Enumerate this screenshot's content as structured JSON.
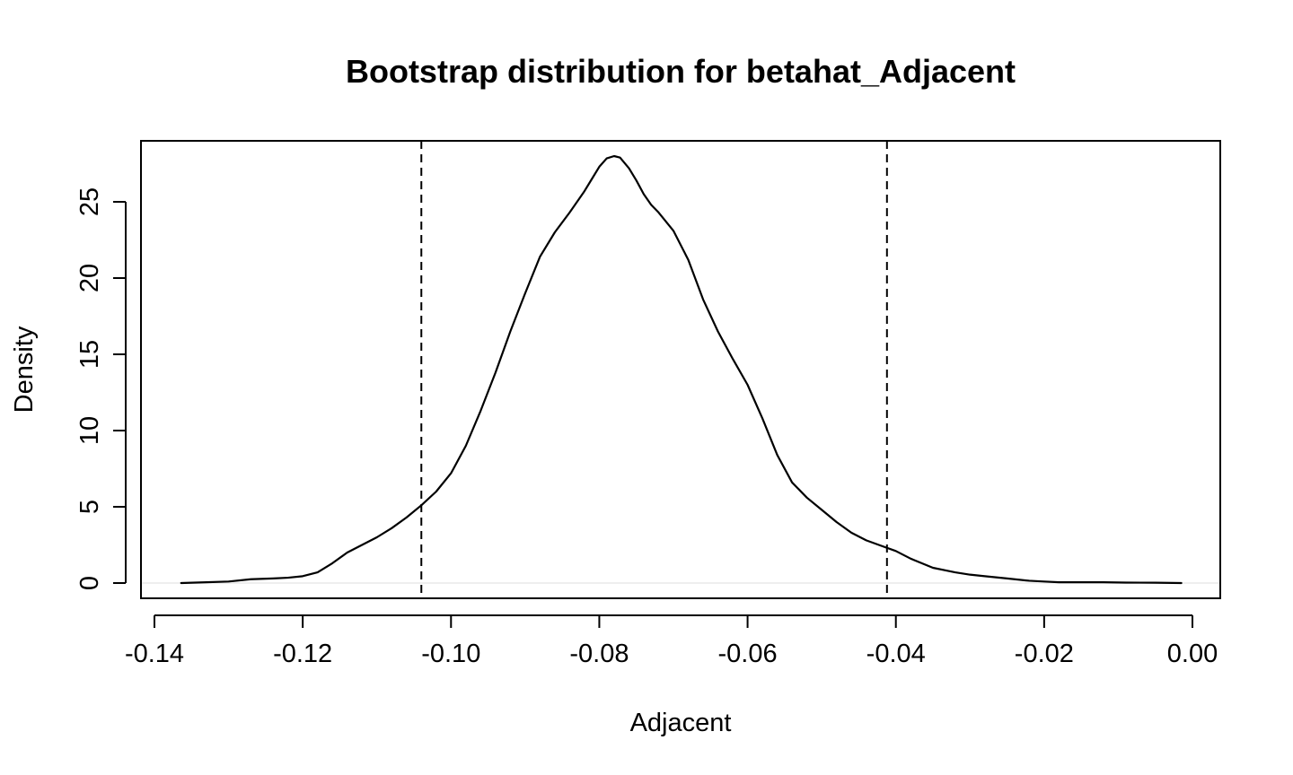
{
  "chart_data": {
    "type": "line",
    "title": "Bootstrap distribution for betahat_Adjacent",
    "xlabel": "Adjacent",
    "ylabel": "Density",
    "xlim": [
      -0.14,
      0.0
    ],
    "ylim": [
      0,
      28
    ],
    "x_ticks": [
      "-0.14",
      "-0.12",
      "-0.10",
      "-0.08",
      "-0.06",
      "-0.04",
      "-0.02",
      "0.00"
    ],
    "x_tick_values": [
      -0.14,
      -0.12,
      -0.1,
      -0.08,
      -0.06,
      -0.04,
      -0.02,
      0.0
    ],
    "y_ticks": [
      "0",
      "5",
      "10",
      "15",
      "20",
      "25"
    ],
    "y_tick_values": [
      0,
      5,
      10,
      15,
      20,
      25
    ],
    "grid": false,
    "series": [
      {
        "style": "solid",
        "color": "#000000",
        "x": [
          -0.1364,
          -0.133,
          -0.13,
          -0.127,
          -0.124,
          -0.122,
          -0.12,
          -0.118,
          -0.116,
          -0.114,
          -0.112,
          -0.11,
          -0.108,
          -0.106,
          -0.104,
          -0.102,
          -0.1,
          -0.098,
          -0.096,
          -0.094,
          -0.092,
          -0.09,
          -0.088,
          -0.086,
          -0.084,
          -0.082,
          -0.081,
          -0.08,
          -0.079,
          -0.078,
          -0.0772,
          -0.076,
          -0.075,
          -0.074,
          -0.073,
          -0.072,
          -0.07,
          -0.068,
          -0.066,
          -0.064,
          -0.062,
          -0.06,
          -0.058,
          -0.056,
          -0.054,
          -0.052,
          -0.05,
          -0.048,
          -0.046,
          -0.044,
          -0.042,
          -0.04,
          -0.038,
          -0.035,
          -0.032,
          -0.03,
          -0.028,
          -0.025,
          -0.022,
          -0.02,
          -0.018,
          -0.015,
          -0.012,
          -0.009,
          -0.005,
          -0.0015
        ],
        "y": [
          0.0,
          0.05,
          0.1,
          0.25,
          0.3,
          0.35,
          0.45,
          0.7,
          1.3,
          2.0,
          2.5,
          3.0,
          3.6,
          4.3,
          5.1,
          6.0,
          7.2,
          9.0,
          11.3,
          13.8,
          16.5,
          19.0,
          21.4,
          23.0,
          24.3,
          25.7,
          26.5,
          27.3,
          27.85,
          28.0,
          27.9,
          27.2,
          26.4,
          25.5,
          24.8,
          24.3,
          23.1,
          21.2,
          18.6,
          16.5,
          14.7,
          13.0,
          10.8,
          8.4,
          6.6,
          5.6,
          4.8,
          4.0,
          3.3,
          2.8,
          2.45,
          2.1,
          1.6,
          1.0,
          0.7,
          0.55,
          0.45,
          0.3,
          0.15,
          0.1,
          0.05,
          0.05,
          0.05,
          0.03,
          0.02,
          0.0
        ]
      }
    ],
    "vlines": [
      {
        "x": -0.104,
        "style": "dashed",
        "color": "#000000"
      },
      {
        "x": -0.0412,
        "style": "dashed",
        "color": "#000000"
      }
    ],
    "hline": {
      "y": 0,
      "color": "#e8e8e8"
    }
  }
}
